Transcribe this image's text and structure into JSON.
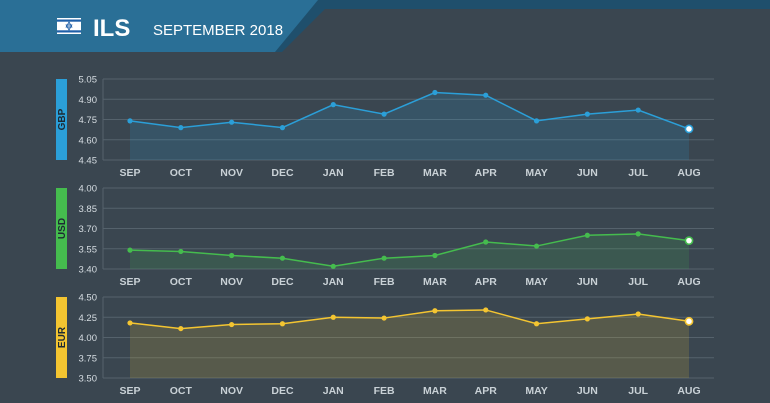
{
  "header": {
    "currency_code": "ILS",
    "period": "SEPTEMBER 2018",
    "flag_icon": "israel-flag-icon",
    "band_color": "#2a6f96",
    "band_dark": "#1f4f6c"
  },
  "colors": {
    "background": "#3a4650",
    "grid": "#55626c",
    "tick_text": "#d6dde2",
    "axis_text": "#c9d1d6"
  },
  "chart_data": [
    {
      "type": "line",
      "series_label": "GBP",
      "color": "#2b9fd8",
      "categories": [
        "SEP",
        "OCT",
        "NOV",
        "DEC",
        "JAN",
        "FEB",
        "MAR",
        "APR",
        "MAY",
        "JUN",
        "JUL",
        "AUG"
      ],
      "values": [
        4.74,
        4.69,
        4.73,
        4.69,
        4.86,
        4.79,
        4.95,
        4.93,
        4.74,
        4.79,
        4.82,
        4.68
      ],
      "ylim": [
        4.45,
        5.05
      ],
      "yticks": [
        "5.05",
        "4.90",
        "4.75",
        "4.60",
        "4.45"
      ]
    },
    {
      "type": "line",
      "series_label": "USD",
      "color": "#45bc4e",
      "categories": [
        "SEP",
        "OCT",
        "NOV",
        "DEC",
        "JAN",
        "FEB",
        "MAR",
        "APR",
        "MAY",
        "JUN",
        "JUL",
        "AUG"
      ],
      "values": [
        3.54,
        3.53,
        3.5,
        3.48,
        3.42,
        3.48,
        3.5,
        3.6,
        3.57,
        3.65,
        3.66,
        3.61
      ],
      "ylim": [
        3.4,
        4.0
      ],
      "yticks": [
        "4.00",
        "3.85",
        "3.70",
        "3.55",
        "3.40"
      ]
    },
    {
      "type": "line",
      "series_label": "EUR",
      "color": "#f4c531",
      "categories": [
        "SEP",
        "OCT",
        "NOV",
        "DEC",
        "JAN",
        "FEB",
        "MAR",
        "APR",
        "MAY",
        "JUN",
        "JUL",
        "AUG"
      ],
      "values": [
        4.18,
        4.11,
        4.16,
        4.17,
        4.25,
        4.24,
        4.33,
        4.34,
        4.17,
        4.23,
        4.29,
        4.2
      ],
      "ylim": [
        3.5,
        4.5
      ],
      "yticks": [
        "4.50",
        "4.25",
        "4.00",
        "3.75",
        "3.50"
      ]
    }
  ]
}
